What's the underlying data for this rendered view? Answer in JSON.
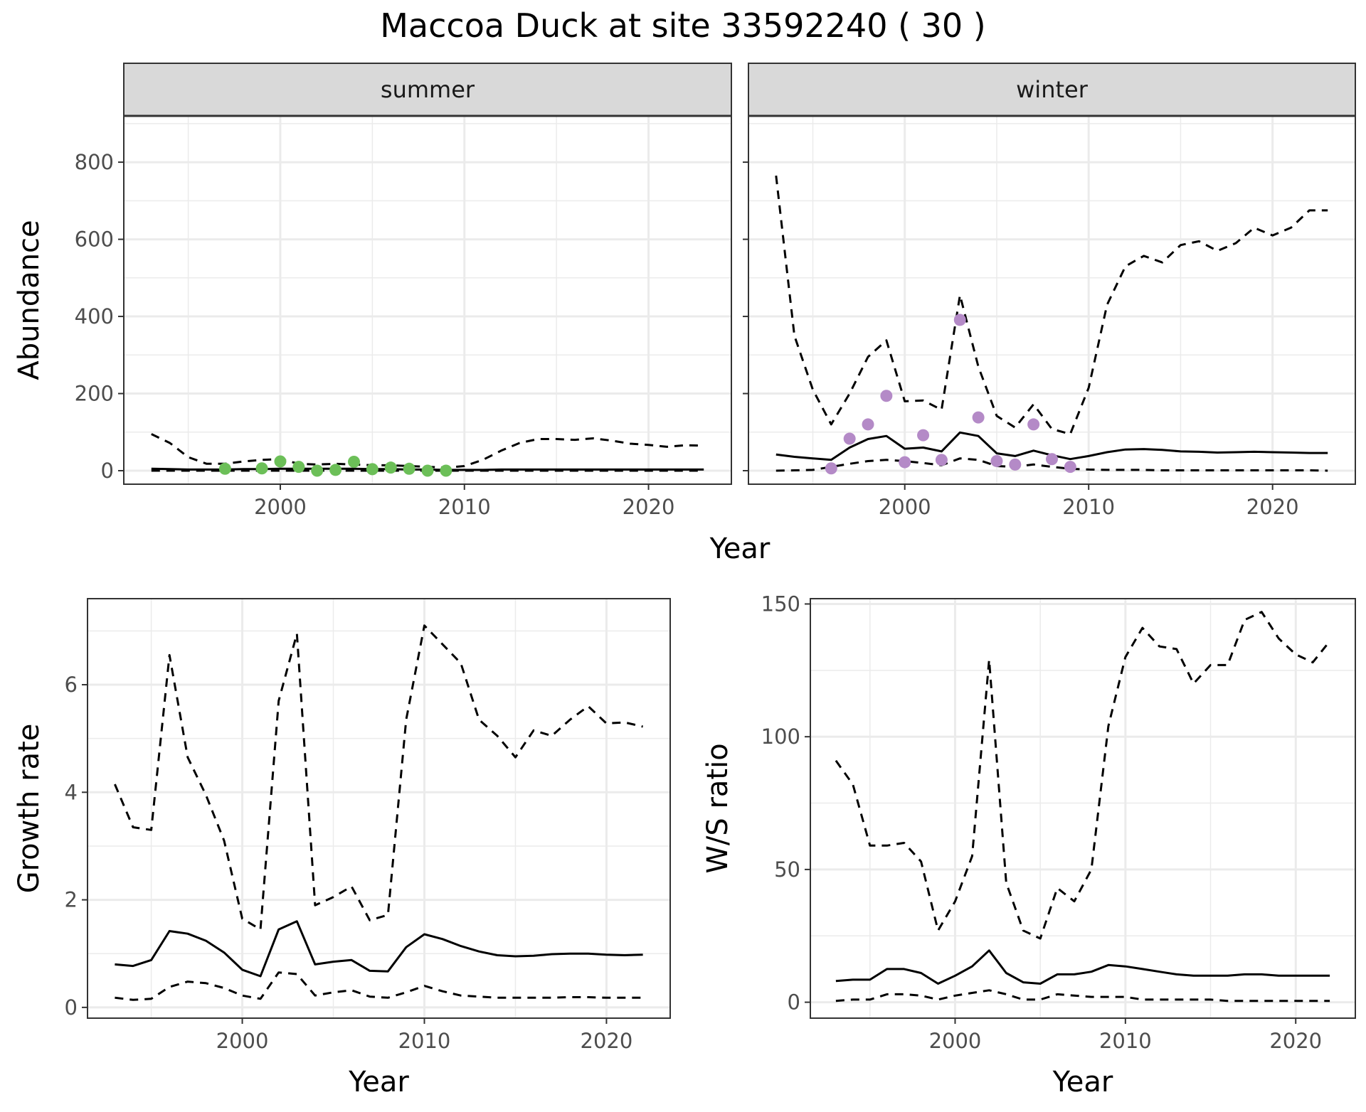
{
  "title": "Maccoa Duck at site 33592240 ( 30 )",
  "colors": {
    "summer_points": "#6cbf58",
    "winter_points": "#b48ac7",
    "strip_fill": "#d9d9d9",
    "grid": "#ebebeb",
    "line": "#000000"
  },
  "chart_data": [
    {
      "id": "abundance-summer",
      "type": "line",
      "facet": "summer",
      "xlabel": "Year",
      "ylabel": "Abundance",
      "xlim": [
        1991.5,
        2024.5
      ],
      "ylim": [
        -35,
        920
      ],
      "xticks": [
        2000,
        2010,
        2020
      ],
      "yticks": [
        0,
        200,
        400,
        600,
        800
      ],
      "grid": true,
      "series": [
        {
          "role": "mean",
          "style": "solid",
          "x": [
            1993,
            1994,
            1995,
            1996,
            1997,
            1998,
            1999,
            2000,
            2001,
            2002,
            2003,
            2004,
            2005,
            2006,
            2007,
            2008,
            2009,
            2010,
            2011,
            2012,
            2013,
            2014,
            2015,
            2016,
            2017,
            2018,
            2019,
            2020,
            2021,
            2022,
            2023
          ],
          "y": [
            5,
            4,
            3,
            3,
            3,
            4,
            4,
            5,
            5,
            5,
            5,
            5,
            4,
            4,
            3,
            3,
            2,
            2,
            2,
            3,
            3,
            3,
            3,
            3,
            3,
            3,
            3,
            3,
            3,
            3,
            3
          ]
        },
        {
          "role": "upper",
          "style": "dashed",
          "x": [
            1993,
            1994,
            1995,
            1996,
            1997,
            1998,
            1999,
            2000,
            2001,
            2002,
            2003,
            2004,
            2005,
            2006,
            2007,
            2008,
            2009,
            2010,
            2011,
            2012,
            2013,
            2014,
            2015,
            2016,
            2017,
            2018,
            2019,
            2020,
            2021,
            2022,
            2023
          ],
          "y": [
            95,
            72,
            35,
            18,
            18,
            24,
            28,
            30,
            18,
            16,
            18,
            16,
            14,
            14,
            12,
            10,
            8,
            12,
            28,
            52,
            72,
            82,
            82,
            80,
            84,
            78,
            70,
            67,
            62,
            66,
            65
          ]
        },
        {
          "role": "lower",
          "style": "dashed",
          "x": [
            1993,
            1994,
            1995,
            1996,
            1997,
            1998,
            1999,
            2000,
            2001,
            2002,
            2003,
            2004,
            2005,
            2006,
            2007,
            2008,
            2009,
            2010,
            2011,
            2012,
            2013,
            2014,
            2015,
            2016,
            2017,
            2018,
            2019,
            2020,
            2021,
            2022,
            2023
          ],
          "y": [
            0,
            0,
            0,
            0,
            0,
            0,
            0,
            0,
            0,
            0,
            0,
            0,
            0,
            0,
            0,
            0,
            0,
            0,
            0,
            0,
            0,
            0,
            0,
            0,
            0,
            0,
            0,
            0,
            0,
            0,
            0
          ]
        },
        {
          "role": "observed",
          "style": "points",
          "x": [
            1997,
            1999,
            2000,
            2001,
            2002,
            2003,
            2004,
            2005,
            2006,
            2007,
            2008,
            2009
          ],
          "y": [
            5,
            6,
            24,
            10,
            0,
            2,
            23,
            4,
            8,
            5,
            0,
            0
          ]
        }
      ]
    },
    {
      "id": "abundance-winter",
      "type": "line",
      "facet": "winter",
      "xlabel": "Year",
      "ylabel": "Abundance",
      "xlim": [
        1991.5,
        2024.5
      ],
      "ylim": [
        -35,
        920
      ],
      "xticks": [
        2000,
        2010,
        2020
      ],
      "yticks": [
        0,
        200,
        400,
        600,
        800
      ],
      "grid": true,
      "series": [
        {
          "role": "mean",
          "style": "solid",
          "x": [
            1993,
            1994,
            1995,
            1996,
            1997,
            1998,
            1999,
            2000,
            2001,
            2002,
            2003,
            2004,
            2005,
            2006,
            2007,
            2008,
            2009,
            2010,
            2011,
            2012,
            2013,
            2014,
            2015,
            2016,
            2017,
            2018,
            2019,
            2020,
            2021,
            2022,
            2023
          ],
          "y": [
            42,
            36,
            32,
            28,
            60,
            82,
            90,
            57,
            60,
            50,
            99,
            90,
            45,
            38,
            52,
            40,
            30,
            38,
            48,
            55,
            56,
            54,
            50,
            49,
            47,
            48,
            49,
            48,
            47,
            46,
            46
          ]
        },
        {
          "role": "upper",
          "style": "dashed",
          "x": [
            1993,
            1994,
            1995,
            1996,
            1997,
            1998,
            1999,
            2000,
            2001,
            2002,
            2003,
            2004,
            2005,
            2006,
            2007,
            2008,
            2009,
            2010,
            2011,
            2012,
            2013,
            2014,
            2015,
            2016,
            2017,
            2018,
            2019,
            2020,
            2021,
            2022,
            2023
          ],
          "y": [
            765,
            350,
            210,
            120,
            200,
            295,
            338,
            180,
            182,
            158,
            455,
            270,
            142,
            112,
            172,
            108,
            95,
            215,
            430,
            530,
            557,
            540,
            585,
            595,
            570,
            590,
            630,
            610,
            630,
            675,
            675
          ]
        },
        {
          "role": "lower",
          "style": "dashed",
          "x": [
            1993,
            1994,
            1995,
            1996,
            1997,
            1998,
            1999,
            2000,
            2001,
            2002,
            2003,
            2004,
            2005,
            2006,
            2007,
            2008,
            2009,
            2010,
            2011,
            2012,
            2013,
            2014,
            2015,
            2016,
            2017,
            2018,
            2019,
            2020,
            2021,
            2022,
            2023
          ],
          "y": [
            0,
            1,
            2,
            10,
            18,
            25,
            28,
            25,
            20,
            14,
            32,
            28,
            12,
            10,
            16,
            10,
            5,
            3,
            2,
            2,
            2,
            1,
            1,
            1,
            1,
            1,
            1,
            1,
            1,
            1,
            0
          ]
        },
        {
          "role": "observed",
          "style": "points",
          "x": [
            1996,
            1997,
            1998,
            1999,
            2000,
            2001,
            2002,
            2003,
            2004,
            2005,
            2006,
            2007,
            2008,
            2009
          ],
          "y": [
            6,
            83,
            120,
            194,
            22,
            92,
            28,
            391,
            138,
            25,
            16,
            120,
            30,
            10
          ]
        }
      ]
    },
    {
      "id": "growth-rate",
      "type": "line",
      "xlabel": "Year",
      "ylabel": "Growth rate",
      "xlim": [
        1991.5,
        2023.5
      ],
      "ylim": [
        -0.2,
        7.6
      ],
      "xticks": [
        2000,
        2010,
        2020
      ],
      "yticks": [
        0,
        2,
        4,
        6
      ],
      "grid": true,
      "series": [
        {
          "role": "mean",
          "style": "solid",
          "x": [
            1993,
            1994,
            1995,
            1996,
            1997,
            1998,
            1999,
            2000,
            2001,
            2002,
            2003,
            2004,
            2005,
            2006,
            2007,
            2008,
            2009,
            2010,
            2011,
            2012,
            2013,
            2014,
            2015,
            2016,
            2017,
            2018,
            2019,
            2020,
            2021,
            2022
          ],
          "y": [
            0.8,
            0.77,
            0.88,
            1.42,
            1.37,
            1.24,
            1.02,
            0.7,
            0.58,
            1.45,
            1.6,
            0.8,
            0.85,
            0.88,
            0.68,
            0.67,
            1.12,
            1.36,
            1.27,
            1.14,
            1.04,
            0.97,
            0.95,
            0.96,
            0.99,
            1.0,
            1.0,
            0.98,
            0.97,
            0.98
          ]
        },
        {
          "role": "upper",
          "style": "dashed",
          "x": [
            1993,
            1994,
            1995,
            1996,
            1997,
            1998,
            1999,
            2000,
            2001,
            2002,
            2003,
            2004,
            2005,
            2006,
            2007,
            2008,
            2009,
            2010,
            2011,
            2012,
            2013,
            2014,
            2015,
            2016,
            2017,
            2018,
            2019,
            2020,
            2021,
            2022
          ],
          "y": [
            4.15,
            3.35,
            3.3,
            6.55,
            4.65,
            3.95,
            3.1,
            1.65,
            1.45,
            5.7,
            6.95,
            1.9,
            2.05,
            2.25,
            1.62,
            1.72,
            5.35,
            7.1,
            6.75,
            6.4,
            5.35,
            5.05,
            4.65,
            5.15,
            5.05,
            5.35,
            5.6,
            5.28,
            5.3,
            5.22
          ]
        },
        {
          "role": "lower",
          "style": "dashed",
          "x": [
            1993,
            1994,
            1995,
            1996,
            1997,
            1998,
            1999,
            2000,
            2001,
            2002,
            2003,
            2004,
            2005,
            2006,
            2007,
            2008,
            2009,
            2010,
            2011,
            2012,
            2013,
            2014,
            2015,
            2016,
            2017,
            2018,
            2019,
            2020,
            2021,
            2022
          ],
          "y": [
            0.18,
            0.14,
            0.16,
            0.38,
            0.48,
            0.45,
            0.36,
            0.22,
            0.16,
            0.65,
            0.62,
            0.22,
            0.28,
            0.32,
            0.2,
            0.18,
            0.28,
            0.4,
            0.3,
            0.22,
            0.2,
            0.18,
            0.18,
            0.18,
            0.18,
            0.19,
            0.19,
            0.18,
            0.18,
            0.18
          ]
        }
      ]
    },
    {
      "id": "ws-ratio",
      "type": "line",
      "xlabel": "Year",
      "ylabel": "W/S ratio",
      "xlim": [
        1991.5,
        2023.5
      ],
      "ylim": [
        -6,
        152
      ],
      "xticks": [
        2000,
        2010,
        2020
      ],
      "yticks": [
        0,
        50,
        100,
        150
      ],
      "grid": true,
      "series": [
        {
          "role": "mean",
          "style": "solid",
          "x": [
            1993,
            1994,
            1995,
            1996,
            1997,
            1998,
            1999,
            2000,
            2001,
            2002,
            2003,
            2004,
            2005,
            2006,
            2007,
            2008,
            2009,
            2010,
            2011,
            2012,
            2013,
            2014,
            2015,
            2016,
            2017,
            2018,
            2019,
            2020,
            2021,
            2022
          ],
          "y": [
            8,
            8.5,
            8.5,
            12.5,
            12.5,
            11,
            7,
            10,
            13.5,
            19.5,
            11,
            7.5,
            7,
            10.5,
            10.5,
            11.5,
            14,
            13.5,
            12.5,
            11.5,
            10.5,
            10,
            10,
            10,
            10.5,
            10.5,
            10,
            10,
            10,
            10
          ]
        },
        {
          "role": "upper",
          "style": "dashed",
          "x": [
            1993,
            1994,
            1995,
            1996,
            1997,
            1998,
            1999,
            2000,
            2001,
            2002,
            2003,
            2004,
            2005,
            2006,
            2007,
            2008,
            2009,
            2010,
            2011,
            2012,
            2013,
            2014,
            2015,
            2016,
            2017,
            2018,
            2019,
            2020,
            2021,
            2022
          ],
          "y": [
            91,
            82,
            59,
            59,
            60,
            53,
            27,
            38,
            55,
            129,
            45,
            27,
            24,
            43,
            38,
            50,
            104,
            130,
            141,
            134,
            133,
            120,
            127,
            127,
            144,
            147,
            137,
            131,
            128,
            136
          ]
        },
        {
          "role": "lower",
          "style": "dashed",
          "x": [
            1993,
            1994,
            1995,
            1996,
            1997,
            1998,
            1999,
            2000,
            2001,
            2002,
            2003,
            2004,
            2005,
            2006,
            2007,
            2008,
            2009,
            2010,
            2011,
            2012,
            2013,
            2014,
            2015,
            2016,
            2017,
            2018,
            2019,
            2020,
            2021,
            2022
          ],
          "y": [
            0.5,
            1,
            1,
            3,
            3,
            2.5,
            1,
            2.5,
            3.5,
            4.5,
            3,
            1,
            1,
            3,
            2.5,
            2,
            2,
            2,
            1,
            1,
            1,
            1,
            1,
            0.5,
            0.5,
            0.5,
            0.5,
            0.5,
            0.5,
            0.5
          ]
        }
      ]
    }
  ]
}
